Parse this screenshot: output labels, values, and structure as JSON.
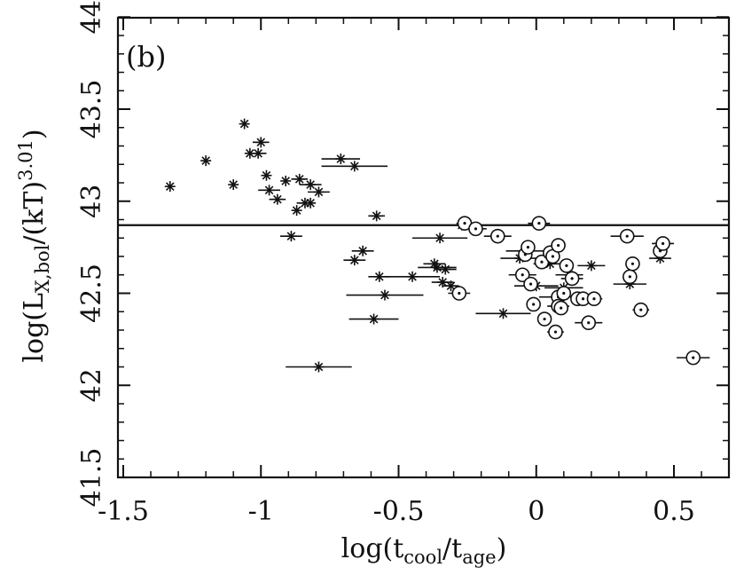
{
  "chart_data": {
    "type": "scatter",
    "panel_label": "(b)",
    "xlabel": "log(t_cool/t_age)",
    "ylabel": "log(L_X,bol/(kT)^3.01)",
    "xlim": [
      -1.5,
      0.7
    ],
    "ylim": [
      41.5,
      44.0
    ],
    "x_ticks": [
      {
        "value": -1.5,
        "label": "-1.5"
      },
      {
        "value": -1.0,
        "label": "-1"
      },
      {
        "value": -0.5,
        "label": "-0.5"
      },
      {
        "value": 0.0,
        "label": "0"
      },
      {
        "value": 0.5,
        "label": "0.5"
      }
    ],
    "y_ticks": [
      {
        "value": 41.5,
        "label": "41.5"
      },
      {
        "value": 42.0,
        "label": "42"
      },
      {
        "value": 42.5,
        "label": "42.5"
      },
      {
        "value": 43.0,
        "label": "43"
      },
      {
        "value": 43.5,
        "label": "43.5"
      },
      {
        "value": 44.0,
        "label": "44"
      }
    ],
    "reference_line": {
      "y": 42.87
    },
    "series": [
      {
        "name": "star",
        "marker": "asterisk",
        "points": [
          {
            "x": -1.33,
            "y": 43.08,
            "xerr": 0
          },
          {
            "x": -1.2,
            "y": 43.22,
            "xerr": 0
          },
          {
            "x": -1.1,
            "y": 43.09,
            "xerr": 0
          },
          {
            "x": -1.06,
            "y": 43.42,
            "xerr": 0
          },
          {
            "x": -1.04,
            "y": 43.26,
            "xerr": 0
          },
          {
            "x": -1.01,
            "y": 43.26,
            "xerr": 0.03
          },
          {
            "x": -1.0,
            "y": 43.32,
            "xerr": 0.03
          },
          {
            "x": -0.98,
            "y": 43.14,
            "xerr": 0
          },
          {
            "x": -0.97,
            "y": 43.06,
            "xerr": 0.04
          },
          {
            "x": -0.94,
            "y": 43.01,
            "xerr": 0.03
          },
          {
            "x": -0.91,
            "y": 43.11,
            "xerr": 0
          },
          {
            "x": -0.89,
            "y": 42.81,
            "xerr": 0.04
          },
          {
            "x": -0.87,
            "y": 42.95,
            "xerr": 0
          },
          {
            "x": -0.86,
            "y": 43.12,
            "xerr": 0.03
          },
          {
            "x": -0.84,
            "y": 42.99,
            "xerr": 0.03
          },
          {
            "x": -0.82,
            "y": 42.99,
            "xerr": 0
          },
          {
            "x": -0.82,
            "y": 43.09,
            "xerr": 0.04
          },
          {
            "x": -0.79,
            "y": 43.05,
            "xerr": 0.04
          },
          {
            "x": -0.79,
            "y": 42.1,
            "xerr": 0.12
          },
          {
            "x": -0.71,
            "y": 43.23,
            "xerr": 0.07
          },
          {
            "x": -0.66,
            "y": 43.19,
            "xerr": 0.12
          },
          {
            "x": -0.66,
            "y": 42.68,
            "xerr": 0.04
          },
          {
            "x": -0.63,
            "y": 42.73,
            "xerr": 0.04
          },
          {
            "x": -0.59,
            "y": 42.36,
            "xerr": 0.09
          },
          {
            "x": -0.58,
            "y": 42.92,
            "xerr": 0.03
          },
          {
            "x": -0.57,
            "y": 42.59,
            "xerr": 0.04
          },
          {
            "x": -0.55,
            "y": 42.49,
            "xerr": 0.14
          },
          {
            "x": -0.45,
            "y": 42.59,
            "xerr": 0.1
          },
          {
            "x": -0.37,
            "y": 42.66,
            "xerr": 0.04
          },
          {
            "x": -0.36,
            "y": 42.64,
            "xerr": 0.07
          },
          {
            "x": -0.35,
            "y": 42.8,
            "xerr": 0.1
          },
          {
            "x": -0.34,
            "y": 42.56,
            "xerr": 0.04
          },
          {
            "x": -0.33,
            "y": 42.63,
            "xerr": 0.04
          },
          {
            "x": -0.31,
            "y": 42.54,
            "xerr": 0.03
          },
          {
            "x": -0.27,
            "y": 42.87,
            "xerr": 0.03
          },
          {
            "x": -0.12,
            "y": 42.39,
            "xerr": 0.1
          },
          {
            "x": -0.06,
            "y": 42.69,
            "xerr": 0.07
          },
          {
            "x": -0.03,
            "y": 42.73,
            "xerr": 0.08
          },
          {
            "x": 0.0,
            "y": 42.54,
            "xerr": 0.08
          },
          {
            "x": 0.05,
            "y": 42.66,
            "xerr": 0.06
          },
          {
            "x": 0.1,
            "y": 42.53,
            "xerr": 0.07
          },
          {
            "x": 0.12,
            "y": 42.6,
            "xerr": 0.05
          },
          {
            "x": 0.2,
            "y": 42.65,
            "xerr": 0.05
          },
          {
            "x": 0.34,
            "y": 42.55,
            "xerr": 0.06
          },
          {
            "x": 0.45,
            "y": 42.69,
            "xerr": 0.04
          }
        ]
      },
      {
        "name": "circle",
        "marker": "circle-dot",
        "points": [
          {
            "x": -0.28,
            "y": 42.5,
            "xerr": 0.04
          },
          {
            "x": -0.26,
            "y": 42.88,
            "xerr": 0.03
          },
          {
            "x": -0.22,
            "y": 42.85,
            "xerr": 0.04
          },
          {
            "x": -0.14,
            "y": 42.81,
            "xerr": 0.05
          },
          {
            "x": -0.05,
            "y": 42.6,
            "xerr": 0.05
          },
          {
            "x": -0.04,
            "y": 42.71,
            "xerr": 0
          },
          {
            "x": -0.03,
            "y": 42.75,
            "xerr": 0
          },
          {
            "x": -0.02,
            "y": 42.55,
            "xerr": 0
          },
          {
            "x": -0.01,
            "y": 42.44,
            "xerr": 0
          },
          {
            "x": 0.01,
            "y": 42.88,
            "xerr": 0.04
          },
          {
            "x": 0.02,
            "y": 42.67,
            "xerr": 0
          },
          {
            "x": 0.03,
            "y": 42.36,
            "xerr": 0
          },
          {
            "x": 0.05,
            "y": 42.72,
            "xerr": 0
          },
          {
            "x": 0.06,
            "y": 42.7,
            "xerr": 0
          },
          {
            "x": 0.08,
            "y": 42.76,
            "xerr": 0
          },
          {
            "x": 0.08,
            "y": 42.48,
            "xerr": 0.07
          },
          {
            "x": 0.08,
            "y": 42.43,
            "xerr": 0.04
          },
          {
            "x": 0.09,
            "y": 42.42,
            "xerr": 0
          },
          {
            "x": 0.07,
            "y": 42.29,
            "xerr": 0.03
          },
          {
            "x": 0.1,
            "y": 42.5,
            "xerr": 0
          },
          {
            "x": 0.11,
            "y": 42.65,
            "xerr": 0
          },
          {
            "x": 0.13,
            "y": 42.58,
            "xerr": 0.04
          },
          {
            "x": 0.15,
            "y": 42.47,
            "xerr": 0
          },
          {
            "x": 0.17,
            "y": 42.47,
            "xerr": 0.03
          },
          {
            "x": 0.19,
            "y": 42.34,
            "xerr": 0.05
          },
          {
            "x": 0.21,
            "y": 42.47,
            "xerr": 0.03
          },
          {
            "x": 0.33,
            "y": 42.81,
            "xerr": 0.06
          },
          {
            "x": 0.34,
            "y": 42.59,
            "xerr": 0
          },
          {
            "x": 0.35,
            "y": 42.66,
            "xerr": 0
          },
          {
            "x": 0.38,
            "y": 42.41,
            "xerr": 0.03
          },
          {
            "x": 0.45,
            "y": 42.73,
            "xerr": 0
          },
          {
            "x": 0.46,
            "y": 42.77,
            "xerr": 0.04
          },
          {
            "x": 0.57,
            "y": 42.15,
            "xerr": 0.06
          }
        ]
      }
    ]
  }
}
